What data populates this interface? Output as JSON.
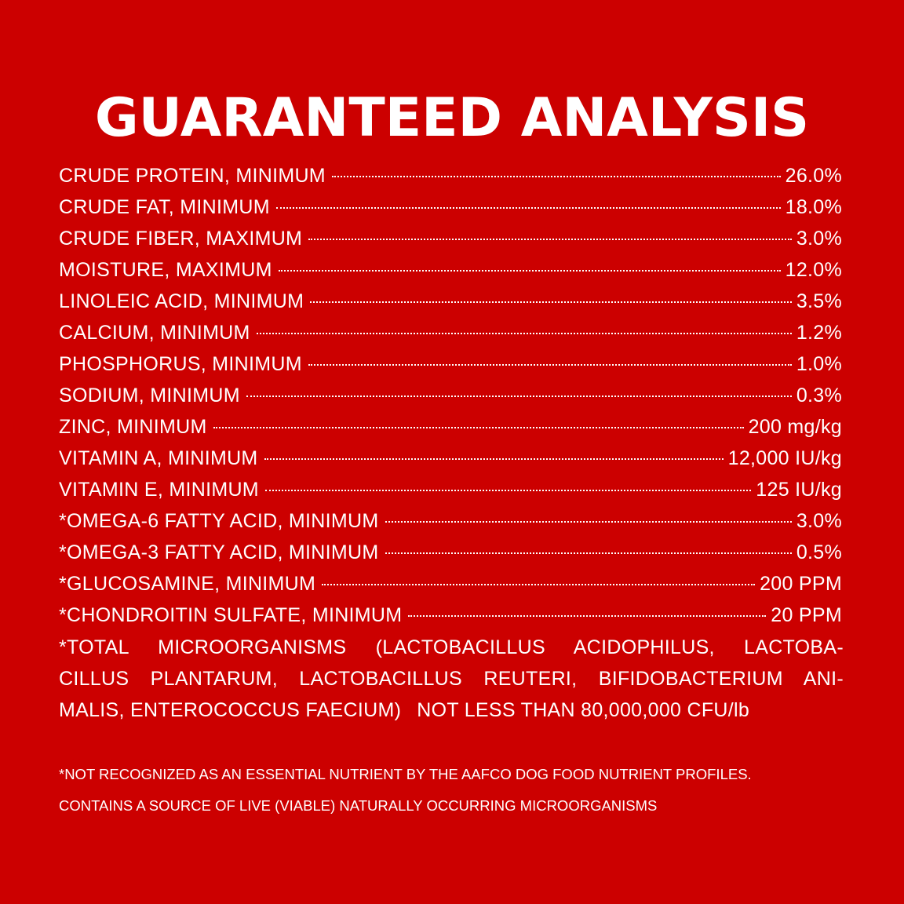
{
  "title": "GUARANTEED ANALYSIS",
  "background_color": "#cc0000",
  "text_color": "#ffffff",
  "analysis": [
    {
      "label": "CRUDE PROTEIN, MINIMUM",
      "value": "26.0%"
    },
    {
      "label": "CRUDE FAT, MINIMUM",
      "value": "18.0%"
    },
    {
      "label": "CRUDE FIBER, MAXIMUM",
      "value": "3.0%"
    },
    {
      "label": "MOISTURE, MAXIMUM",
      "value": "12.0%"
    },
    {
      "label": "LINOLEIC ACID, MINIMUM",
      "value": "3.5%"
    },
    {
      "label": "CALCIUM, MINIMUM",
      "value": "1.2%"
    },
    {
      "label": "PHOSPHORUS, MINIMUM",
      "value": "1.0%"
    },
    {
      "label": "SODIUM, MINIMUM",
      "value": "0.3%"
    },
    {
      "label": "ZINC, MINIMUM",
      "value": "200 mg/kg"
    },
    {
      "label": "VITAMIN A, MINIMUM",
      "value": "12,000 IU/kg"
    },
    {
      "label": "VITAMIN E, MINIMUM",
      "value": "125 IU/kg"
    },
    {
      "label": "*OMEGA-6 FATTY ACID, MINIMUM",
      "value": "3.0%"
    },
    {
      "label": "*OMEGA-3 FATTY ACID, MINIMUM",
      "value": "0.5%"
    },
    {
      "label": "*GLUCOSAMINE, MINIMUM",
      "value": "200 PPM"
    },
    {
      "label": "*CHONDROITIN SULFATE, MINIMUM",
      "value": "20 PPM"
    }
  ],
  "microorganisms": {
    "line1": "*TOTAL MICROORGANISMS (LACTOBACILLUS ACIDOPHILUS, LACTOBA-",
    "line2": "CILLUS PLANTARUM, LACTOBACILLUS REUTERI, BIFIDOBACTERIUM ANI-",
    "line3_label": "MALIS, ENTEROCOCCUS FAECIUM)",
    "line3_value": "NOT LESS THAN 80,000,000 CFU/lb"
  },
  "footnotes": {
    "aafco": "*NOT RECOGNIZED AS AN ESSENTIAL NUTRIENT BY THE AAFCO DOG FOOD NUTRIENT PROFILES.",
    "live_cultures": "CONTAINS A SOURCE OF LIVE (VIABLE) NATURALLY OCCURRING MICROORGANISMS"
  }
}
